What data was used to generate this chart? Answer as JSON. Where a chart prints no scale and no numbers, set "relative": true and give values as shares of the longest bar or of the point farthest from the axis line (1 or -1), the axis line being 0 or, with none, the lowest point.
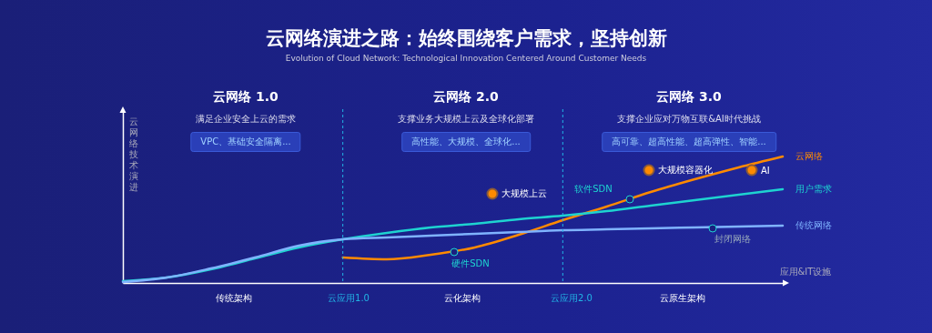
{
  "chart_data": {
    "type": "line",
    "title": "云网络演进之路：始终围绕客户需求，坚持创新",
    "subtitle": "Evolution of Cloud Network: Technological Innovation Centered Around Customer Needs",
    "xlabel": "应用&IT设施",
    "ylabel": "云网络技术演进",
    "relative": true,
    "grid": false,
    "legend": false,
    "categories": [
      null,
      null,
      null,
      null,
      null,
      null,
      null,
      null,
      null,
      null,
      null,
      null,
      null,
      null,
      null,
      null
    ],
    "series": [
      {
        "name": "云网络",
        "color": "#ff8a00",
        "values": [
          null,
          null,
          null,
          null,
          null,
          0.201,
          0.187,
          0.223,
          0.281,
          0.381,
          0.496,
          0.604,
          0.719,
          0.82,
          0.914,
          1
        ]
      },
      {
        "name": "用户需求",
        "color": "#1ed3d0",
        "values": [
          0.014,
          0.043,
          0.108,
          0.194,
          0.281,
          0.345,
          0.396,
          0.439,
          0.468,
          0.504,
          0.532,
          0.568,
          0.612,
          0.655,
          0.698,
          0.741
        ]
      },
      {
        "name": "传统网络",
        "color": "#7fb3ff",
        "values": [
          0.007,
          0.043,
          0.115,
          0.201,
          0.295,
          0.345,
          0.36,
          0.374,
          0.388,
          0.403,
          0.417,
          0.424,
          0.432,
          0.439,
          0.446,
          0.453
        ]
      }
    ],
    "annotations": [
      "云网络 1.0",
      "满足企业安全上云的需求",
      "VPC、基础安全隔离...",
      "云网络 2.0",
      "支撑业务大规模上云及全球化部署",
      "高性能、大规模、全球化...",
      "云网络 3.0",
      "支撑企业应对万物互联&AI时代挑战",
      "高可靠、超高性能、超高弹性、智能...",
      "大规模上云",
      "大规模容器化",
      "AI",
      "硬件SDN",
      "软件SDN",
      "封闭网络",
      "传统架构",
      "云化架构",
      "云原生架构",
      "云应用1.0",
      "云应用2.0"
    ]
  }
}
